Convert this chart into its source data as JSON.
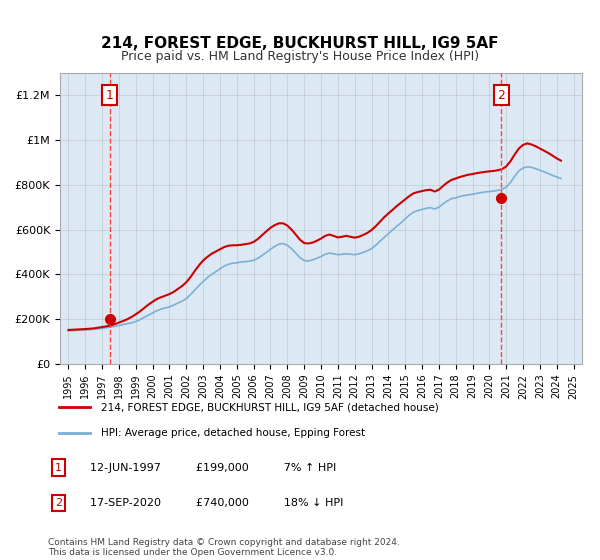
{
  "title": "214, FOREST EDGE, BUCKHURST HILL, IG9 5AF",
  "subtitle": "Price paid vs. HM Land Registry's House Price Index (HPI)",
  "bg_color": "#dce9f5",
  "plot_bg_color": "#dce9f5",
  "sale1_date_num": 1997.45,
  "sale1_price": 199000,
  "sale1_label": "1",
  "sale2_date_num": 2020.71,
  "sale2_price": 740000,
  "sale2_label": "2",
  "legend_line1": "214, FOREST EDGE, BUCKHURST HILL, IG9 5AF (detached house)",
  "legend_line2": "HPI: Average price, detached house, Epping Forest",
  "annotation1": "1    12-JUN-1997         £199,000          7% ↑ HPI",
  "annotation2": "2    17-SEP-2020         £740,000          18% ↓ HPI",
  "footer": "Contains HM Land Registry data © Crown copyright and database right 2024.\nThis data is licensed under the Open Government Licence v3.0.",
  "hpi_years": [
    1995.0,
    1995.25,
    1995.5,
    1995.75,
    1996.0,
    1996.25,
    1996.5,
    1996.75,
    1997.0,
    1997.25,
    1997.5,
    1997.75,
    1998.0,
    1998.25,
    1998.5,
    1998.75,
    1999.0,
    1999.25,
    1999.5,
    1999.75,
    2000.0,
    2000.25,
    2000.5,
    2000.75,
    2001.0,
    2001.25,
    2001.5,
    2001.75,
    2002.0,
    2002.25,
    2002.5,
    2002.75,
    2003.0,
    2003.25,
    2003.5,
    2003.75,
    2004.0,
    2004.25,
    2004.5,
    2004.75,
    2005.0,
    2005.25,
    2005.5,
    2005.75,
    2006.0,
    2006.25,
    2006.5,
    2006.75,
    2007.0,
    2007.25,
    2007.5,
    2007.75,
    2008.0,
    2008.25,
    2008.5,
    2008.75,
    2009.0,
    2009.25,
    2009.5,
    2009.75,
    2010.0,
    2010.25,
    2010.5,
    2010.75,
    2011.0,
    2011.25,
    2011.5,
    2011.75,
    2012.0,
    2012.25,
    2012.5,
    2012.75,
    2013.0,
    2013.25,
    2013.5,
    2013.75,
    2014.0,
    2014.25,
    2014.5,
    2014.75,
    2015.0,
    2015.25,
    2015.5,
    2015.75,
    2016.0,
    2016.25,
    2016.5,
    2016.75,
    2017.0,
    2017.25,
    2017.5,
    2017.75,
    2018.0,
    2018.25,
    2018.5,
    2018.75,
    2019.0,
    2019.25,
    2019.5,
    2019.75,
    2020.0,
    2020.25,
    2020.5,
    2020.75,
    2021.0,
    2021.25,
    2021.5,
    2021.75,
    2022.0,
    2022.25,
    2022.5,
    2022.75,
    2023.0,
    2023.25,
    2023.5,
    2023.75,
    2024.0,
    2024.25
  ],
  "hpi_values": [
    148000,
    149000,
    150500,
    151000,
    152000,
    153500,
    155000,
    157000,
    159000,
    162000,
    165000,
    168000,
    172000,
    176000,
    180000,
    184000,
    190000,
    198000,
    208000,
    218000,
    228000,
    238000,
    245000,
    250000,
    255000,
    263000,
    272000,
    280000,
    292000,
    310000,
    330000,
    350000,
    368000,
    385000,
    400000,
    412000,
    425000,
    437000,
    445000,
    450000,
    452000,
    455000,
    457000,
    459000,
    463000,
    472000,
    485000,
    498000,
    512000,
    525000,
    535000,
    538000,
    530000,
    515000,
    495000,
    475000,
    462000,
    460000,
    465000,
    472000,
    480000,
    490000,
    495000,
    492000,
    488000,
    490000,
    492000,
    490000,
    488000,
    492000,
    498000,
    505000,
    515000,
    530000,
    548000,
    565000,
    582000,
    598000,
    615000,
    630000,
    648000,
    665000,
    678000,
    685000,
    690000,
    695000,
    698000,
    692000,
    700000,
    715000,
    728000,
    738000,
    742000,
    748000,
    752000,
    755000,
    758000,
    762000,
    765000,
    768000,
    770000,
    772000,
    775000,
    780000,
    790000,
    810000,
    838000,
    862000,
    875000,
    880000,
    878000,
    872000,
    865000,
    858000,
    850000,
    842000,
    835000,
    828000
  ],
  "property_years": [
    1995.0,
    1995.25,
    1995.5,
    1995.75,
    1996.0,
    1996.25,
    1996.5,
    1996.75,
    1997.0,
    1997.25,
    1997.5,
    1997.75,
    1998.0,
    1998.25,
    1998.5,
    1998.75,
    1999.0,
    1999.25,
    1999.5,
    1999.75,
    2000.0,
    2000.25,
    2000.5,
    2000.75,
    2001.0,
    2001.25,
    2001.5,
    2001.75,
    2002.0,
    2002.25,
    2002.5,
    2002.75,
    2003.0,
    2003.25,
    2003.5,
    2003.75,
    2004.0,
    2004.25,
    2004.5,
    2004.75,
    2005.0,
    2005.25,
    2005.5,
    2005.75,
    2006.0,
    2006.25,
    2006.5,
    2006.75,
    2007.0,
    2007.25,
    2007.5,
    2007.75,
    2008.0,
    2008.25,
    2008.5,
    2008.75,
    2009.0,
    2009.25,
    2009.5,
    2009.75,
    2010.0,
    2010.25,
    2010.5,
    2010.75,
    2011.0,
    2011.25,
    2011.5,
    2011.75,
    2012.0,
    2012.25,
    2012.5,
    2012.75,
    2013.0,
    2013.25,
    2013.5,
    2013.75,
    2014.0,
    2014.25,
    2014.5,
    2014.75,
    2015.0,
    2015.25,
    2015.5,
    2015.75,
    2016.0,
    2016.25,
    2016.5,
    2016.75,
    2017.0,
    2017.25,
    2017.5,
    2017.75,
    2018.0,
    2018.25,
    2018.5,
    2018.75,
    2019.0,
    2019.25,
    2019.5,
    2019.75,
    2020.0,
    2020.25,
    2020.5,
    2020.75,
    2021.0,
    2021.25,
    2021.5,
    2021.75,
    2022.0,
    2022.25,
    2022.5,
    2022.75,
    2023.0,
    2023.25,
    2023.5,
    2023.75,
    2024.0,
    2024.25
  ],
  "property_values": [
    152000,
    153000,
    154000,
    155000,
    156000,
    157500,
    159000,
    162000,
    165000,
    168000,
    172000,
    178000,
    185000,
    192000,
    200000,
    210000,
    222000,
    235000,
    250000,
    265000,
    278000,
    290000,
    298000,
    305000,
    312000,
    322000,
    335000,
    348000,
    365000,
    388000,
    415000,
    440000,
    462000,
    478000,
    492000,
    502000,
    512000,
    522000,
    528000,
    530000,
    530000,
    532000,
    535000,
    538000,
    545000,
    558000,
    575000,
    592000,
    608000,
    620000,
    628000,
    628000,
    618000,
    600000,
    578000,
    555000,
    540000,
    538000,
    542000,
    550000,
    560000,
    572000,
    578000,
    572000,
    565000,
    568000,
    572000,
    568000,
    564000,
    568000,
    576000,
    585000,
    598000,
    615000,
    635000,
    655000,
    672000,
    688000,
    705000,
    720000,
    735000,
    750000,
    762000,
    768000,
    772000,
    776000,
    778000,
    770000,
    778000,
    795000,
    810000,
    822000,
    828000,
    835000,
    840000,
    845000,
    848000,
    852000,
    855000,
    858000,
    860000,
    862000,
    865000,
    870000,
    882000,
    905000,
    935000,
    962000,
    978000,
    985000,
    980000,
    972000,
    962000,
    952000,
    942000,
    930000,
    918000,
    908000
  ],
  "xlim": [
    1994.5,
    2025.5
  ],
  "ylim": [
    0,
    1300000
  ],
  "yticks": [
    0,
    200000,
    400000,
    600000,
    800000,
    1000000,
    1200000
  ],
  "ytick_labels": [
    "£0",
    "£200K",
    "£400K",
    "£600K",
    "£800K",
    "£1M",
    "£1.2M"
  ],
  "xticks": [
    1995,
    1996,
    1997,
    1998,
    1999,
    2000,
    2001,
    2002,
    2003,
    2004,
    2005,
    2006,
    2007,
    2008,
    2009,
    2010,
    2011,
    2012,
    2013,
    2014,
    2015,
    2016,
    2017,
    2018,
    2019,
    2020,
    2021,
    2022,
    2023,
    2024,
    2025
  ],
  "grid_color": "#aaaaaa",
  "vline_color": "#ff4444",
  "hpi_line_color": "#7ab0d4",
  "property_line_color": "#cc0000",
  "marker_color": "#cc0000",
  "box_color": "#cc0000"
}
